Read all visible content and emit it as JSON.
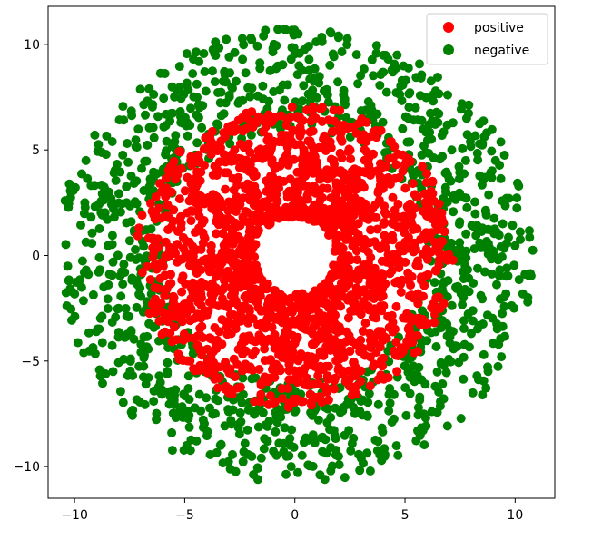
{
  "chart_data": {
    "type": "scatter",
    "title": "",
    "xlabel": "",
    "ylabel": "",
    "xlim": [
      -11.2,
      11.8
    ],
    "ylim": [
      -11.5,
      11.8
    ],
    "xticks": [
      -10,
      -5,
      0,
      5,
      10
    ],
    "yticks": [
      -10,
      -5,
      0,
      5,
      10
    ],
    "xtick_labels": [
      "−10",
      "−5",
      "0",
      "5",
      "10"
    ],
    "ytick_labels": [
      "−10",
      "−5",
      "0",
      "5",
      "10"
    ],
    "grid": false,
    "legend": {
      "placement": "top-right"
    },
    "series": [
      {
        "name": "positive",
        "color": "#ff0000",
        "distribution": {
          "shape": "ring",
          "r_min": 1.8,
          "r_max": 7.2,
          "count": 1800
        }
      },
      {
        "name": "negative",
        "color": "#008000",
        "distribution": {
          "shape": "ring",
          "r_min": 6.0,
          "r_max": 10.8,
          "count": 1300
        }
      }
    ]
  }
}
